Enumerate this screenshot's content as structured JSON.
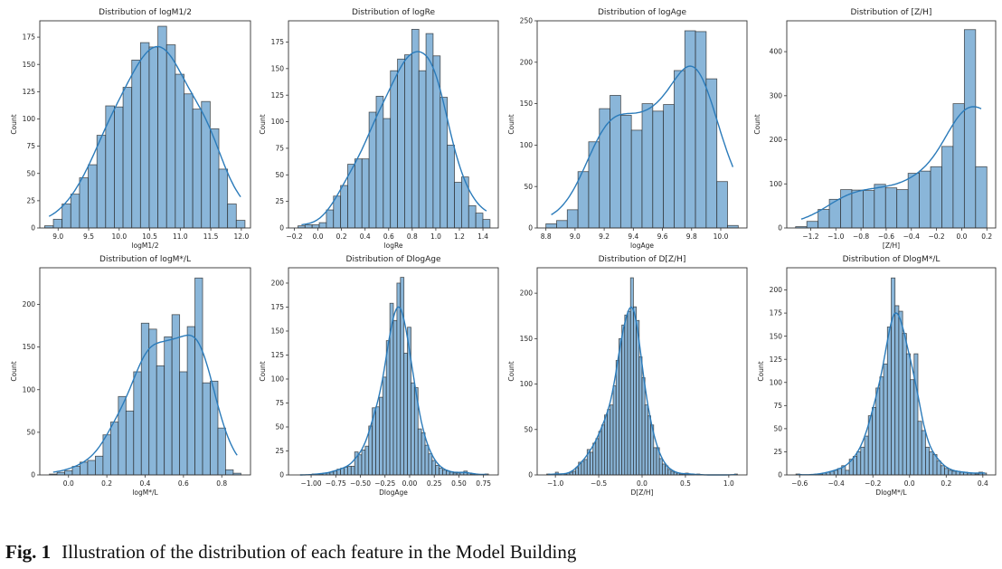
{
  "caption": {
    "label": "Fig. 1",
    "text": "Illustration of the distribution of each feature in the Model Building"
  },
  "colors": {
    "bar_fill": "#8ab6d9",
    "bar_edge": "#222222",
    "kde_line": "#2b7bba"
  },
  "chart_data": [
    {
      "type": "bar",
      "title": "Distribution of logM1/2",
      "xlabel": "logM1/2",
      "ylabel": "Count",
      "bin_range": [
        8.78,
        12.06
      ],
      "xlim": [
        8.7,
        12.15
      ],
      "ylim": [
        0,
        190
      ],
      "xticks": [
        9.0,
        9.5,
        10.0,
        10.5,
        11.0,
        11.5,
        12.0
      ],
      "xtick_labels": [
        "9.0",
        "9.5",
        "10.0",
        "10.5",
        "11.0",
        "11.5",
        "12.0"
      ],
      "yticks": [
        0,
        25,
        50,
        75,
        100,
        125,
        150,
        175
      ],
      "counts": [
        2,
        8,
        22,
        31,
        46,
        58,
        85,
        112,
        111,
        129,
        154,
        170,
        166,
        185,
        168,
        141,
        123,
        109,
        116,
        91,
        54,
        22,
        7
      ],
      "kde": true
    },
    {
      "type": "bar",
      "title": "Distribution of logRe",
      "xlabel": "logRe",
      "ylabel": "Count",
      "bin_range": [
        -0.17,
        1.46
      ],
      "xlim": [
        -0.25,
        1.53
      ],
      "ylim": [
        0,
        195
      ],
      "xticks": [
        -0.2,
        0.0,
        0.2,
        0.4,
        0.6,
        0.8,
        1.0,
        1.2,
        1.4
      ],
      "xtick_labels": [
        "−0.2",
        "0.0",
        "0.2",
        "0.4",
        "0.6",
        "0.8",
        "1.0",
        "1.2",
        "1.4"
      ],
      "yticks": [
        0,
        25,
        50,
        75,
        100,
        125,
        150,
        175
      ],
      "counts": [
        2,
        3,
        3,
        5,
        17,
        30,
        40,
        60,
        65,
        65,
        109,
        124,
        103,
        148,
        159,
        163,
        187,
        148,
        183,
        162,
        123,
        78,
        43,
        48,
        21,
        14,
        8
      ],
      "kde": true
    },
    {
      "type": "bar",
      "title": "Distribution of logAge",
      "xlabel": "logAge",
      "ylabel": "Count",
      "bin_range": [
        8.8,
        10.12
      ],
      "xlim": [
        8.74,
        10.18
      ],
      "ylim": [
        0,
        250
      ],
      "xticks": [
        8.8,
        9.0,
        9.2,
        9.4,
        9.6,
        9.8,
        10.0
      ],
      "xtick_labels": [
        "8.8",
        "9.0",
        "9.2",
        "9.4",
        "9.6",
        "9.8",
        "10.0"
      ],
      "yticks": [
        0,
        50,
        100,
        150,
        200,
        250
      ],
      "counts": [
        5,
        9,
        22,
        68,
        104,
        144,
        160,
        136,
        118,
        150,
        141,
        149,
        190,
        238,
        237,
        180,
        56,
        3
      ],
      "kde": true
    },
    {
      "type": "bar",
      "title": "Distribution of [Z/H]",
      "xlabel": "[Z/H]",
      "ylabel": "Count",
      "bin_range": [
        -1.32,
        0.2
      ],
      "xlim": [
        -1.39,
        0.27
      ],
      "ylim": [
        0,
        470
      ],
      "xticks": [
        -1.2,
        -1.0,
        -0.8,
        -0.6,
        -0.4,
        -0.2,
        0.0,
        0.2
      ],
      "xtick_labels": [
        "−1.2",
        "−1.0",
        "−0.8",
        "−0.6",
        "−0.4",
        "−0.2",
        "0.0",
        "0.2"
      ],
      "yticks": [
        0,
        100,
        200,
        300,
        400
      ],
      "counts": [
        3,
        15,
        42,
        65,
        87,
        86,
        85,
        99,
        91,
        87,
        124,
        129,
        139,
        185,
        282,
        450,
        139
      ],
      "kde": true
    },
    {
      "type": "bar",
      "title": "Distribution of logM*/L",
      "xlabel": "logM*/L",
      "ylabel": "Count",
      "bin_range": [
        -0.1,
        0.9
      ],
      "xlim": [
        -0.15,
        0.95
      ],
      "ylim": [
        0,
        243
      ],
      "xticks": [
        0.0,
        0.2,
        0.4,
        0.6,
        0.8
      ],
      "xtick_labels": [
        "0.0",
        "0.2",
        "0.4",
        "0.6",
        "0.8"
      ],
      "yticks": [
        0,
        50,
        100,
        150,
        200
      ],
      "counts": [
        1,
        3,
        5,
        10,
        15,
        17,
        22,
        47,
        62,
        92,
        75,
        121,
        178,
        171,
        128,
        162,
        188,
        121,
        174,
        231,
        108,
        110,
        55,
        6,
        2
      ],
      "kde": true
    },
    {
      "type": "bar",
      "title": "Distribution of DlogAge",
      "xlabel": "DlogAge",
      "ylabel": "Count",
      "bin_range": [
        -1.13,
        0.8
      ],
      "xlim": [
        -1.23,
        0.9
      ],
      "ylim": [
        0,
        216
      ],
      "xticks": [
        -1.0,
        -0.75,
        -0.5,
        -0.25,
        0.0,
        0.25,
        0.5,
        0.75
      ],
      "xtick_labels": [
        "−1.00",
        "−0.75",
        "−0.50",
        "−0.25",
        "0.00",
        "0.25",
        "0.50",
        "0.75"
      ],
      "yticks": [
        0,
        25,
        50,
        75,
        100,
        125,
        150,
        175,
        200
      ],
      "counts": [
        0,
        0,
        0,
        0,
        1,
        1,
        1,
        2,
        2,
        3,
        4,
        6,
        7,
        8,
        9,
        9,
        24,
        21,
        26,
        30,
        51,
        70,
        71,
        81,
        102,
        140,
        179,
        161,
        200,
        206,
        127,
        154,
        96,
        91,
        48,
        44,
        31,
        22,
        15,
        10,
        7,
        5,
        4,
        3,
        2,
        2,
        3,
        4,
        2,
        1,
        1,
        0,
        0,
        1
      ],
      "kde": true
    },
    {
      "type": "bar",
      "title": "Distribution of D[Z/H]",
      "xlabel": "D[Z/H]",
      "ylabel": "Count",
      "bin_range": [
        -1.1,
        1.1
      ],
      "xlim": [
        -1.21,
        1.21
      ],
      "ylim": [
        0,
        228
      ],
      "xticks": [
        -1.0,
        -0.5,
        0.0,
        0.5,
        1.0
      ],
      "xtick_labels": [
        "−1.0",
        "−0.5",
        "0.0",
        "0.5",
        "1.0"
      ],
      "yticks": [
        0,
        50,
        100,
        150,
        200
      ],
      "counts": [
        1,
        0,
        0,
        3,
        1,
        0,
        1,
        2,
        3,
        4,
        8,
        14,
        15,
        17,
        28,
        25,
        35,
        40,
        48,
        55,
        66,
        72,
        77,
        98,
        126,
        150,
        165,
        176,
        180,
        217,
        185,
        170,
        130,
        107,
        77,
        65,
        55,
        30,
        30,
        18,
        12,
        10,
        6,
        4,
        3,
        2,
        1,
        1,
        2,
        1,
        1,
        0,
        1,
        0,
        0,
        0,
        0,
        0,
        0,
        0,
        0,
        0,
        0,
        0,
        0,
        1
      ],
      "kde": true
    },
    {
      "type": "bar",
      "title": "Distribution of DlogM*/L",
      "xlabel": "DlogM*/L",
      "ylabel": "Count",
      "bin_range": [
        -0.62,
        0.42
      ],
      "xlim": [
        -0.67,
        0.47
      ],
      "ylim": [
        0,
        224
      ],
      "xticks": [
        -0.6,
        -0.4,
        -0.2,
        0.0,
        0.2,
        0.4
      ],
      "xtick_labels": [
        "−0.6",
        "−0.4",
        "−0.2",
        "0.0",
        "0.2",
        "0.4"
      ],
      "yticks": [
        0,
        25,
        50,
        75,
        100,
        125,
        150,
        175,
        200
      ],
      "counts": [
        1,
        0,
        0,
        0,
        0,
        1,
        1,
        2,
        3,
        4,
        5,
        7,
        10,
        5,
        17,
        20,
        25,
        30,
        42,
        64,
        73,
        94,
        106,
        120,
        160,
        213,
        183,
        177,
        153,
        131,
        103,
        131,
        58,
        48,
        30,
        25,
        22,
        15,
        10,
        7,
        5,
        4,
        4,
        3,
        3,
        2,
        2,
        1,
        3,
        2
      ],
      "kde": true
    }
  ]
}
